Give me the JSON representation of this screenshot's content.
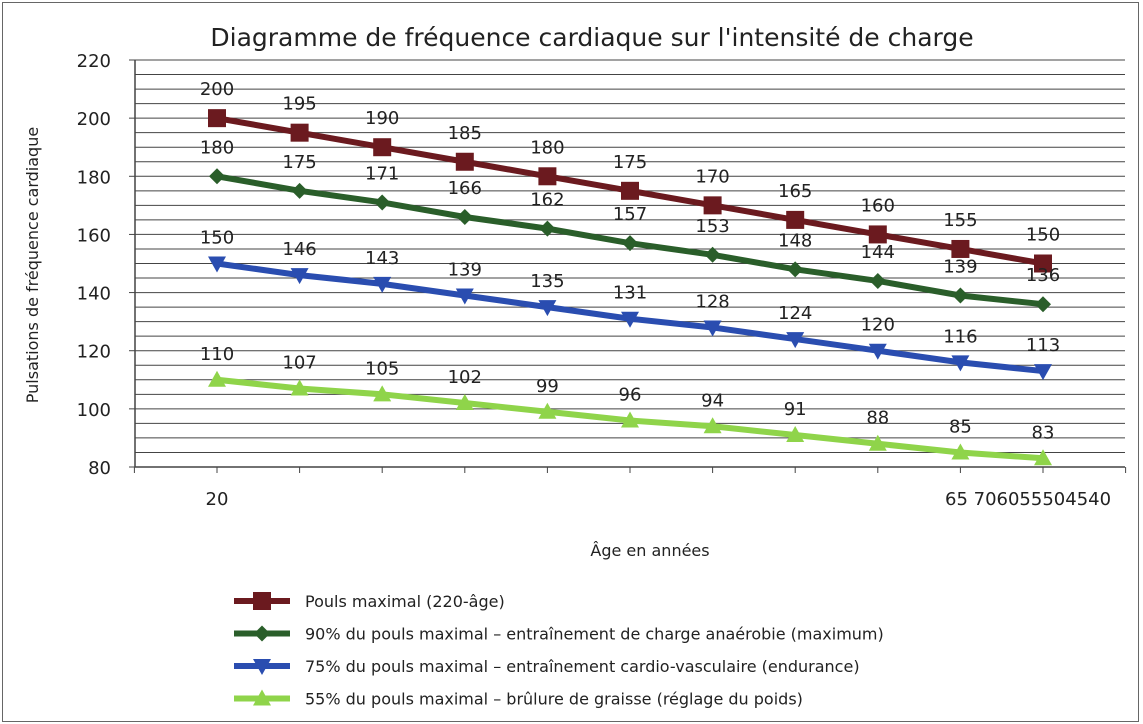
{
  "chart_data": {
    "type": "line",
    "title": "Diagramme de fréquence cardiaque sur l'intensité de charge",
    "xlabel": "Âge en années",
    "ylabel": "Pulsations de fréquence cardiaque",
    "ylim": [
      80,
      220
    ],
    "yticks": [
      80,
      100,
      120,
      140,
      160,
      180,
      200,
      220
    ],
    "grid": true,
    "x_tick_labels": [
      "20",
      "65 706055504540"
    ],
    "legend_position": "bottom",
    "series": [
      {
        "name": "Pouls maximal (220-âge)",
        "color": "#6b1a1f",
        "marker": "square",
        "values": [
          200,
          195,
          190,
          185,
          180,
          175,
          170,
          165,
          160,
          155,
          150
        ]
      },
      {
        "name": "90% du pouls maximal – entraînement de charge anaérobie (maximum)",
        "color": "#2a5e2a",
        "marker": "diamond",
        "values": [
          180,
          175,
          171,
          166,
          162,
          157,
          153,
          148,
          144,
          139,
          136
        ]
      },
      {
        "name": "75% du pouls maximal – entraînement cardio-vasculaire (endurance)",
        "color": "#2a4db0",
        "marker": "triangle-down",
        "values": [
          150,
          146,
          143,
          139,
          135,
          131,
          128,
          124,
          120,
          116,
          113
        ]
      },
      {
        "name": "55% du pouls maximal – brûlure de graisse (réglage du poids)",
        "color": "#8fd44a",
        "marker": "triangle-up",
        "values": [
          110,
          107,
          105,
          102,
          99,
          96,
          94,
          91,
          88,
          85,
          83
        ]
      }
    ]
  }
}
